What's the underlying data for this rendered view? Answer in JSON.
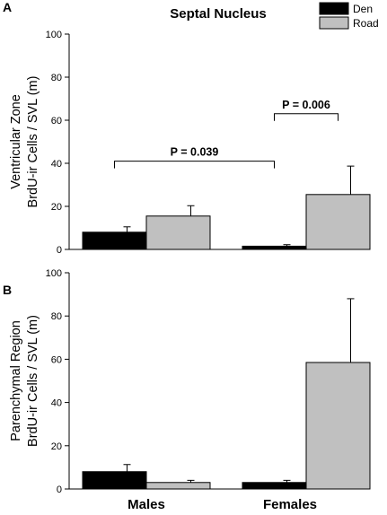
{
  "title": "Septal Nucleus",
  "legend": [
    {
      "label": "Den",
      "color": "#000000"
    },
    {
      "label": "Road",
      "color": "#c0c0c0"
    }
  ],
  "chart_data": [
    {
      "type": "bar",
      "panel": "A",
      "title": "Septal Nucleus",
      "ylabel": [
        "Ventricular Zone",
        "BrdU-ir Cells / SVL (m)"
      ],
      "ylim": [
        0,
        100
      ],
      "yticks": [
        0,
        20,
        40,
        60,
        80,
        100
      ],
      "categories": [
        "Males",
        "Females"
      ],
      "series": [
        {
          "name": "Den",
          "color": "#000000",
          "values": [
            8,
            1.5
          ],
          "errors": [
            2.5,
            0.7
          ]
        },
        {
          "name": "Road",
          "color": "#c0c0c0",
          "values": [
            15.5,
            25.5
          ],
          "errors": [
            4.8,
            13.2
          ]
        }
      ],
      "annotations": [
        {
          "text": "P = 0.039",
          "from": {
            "category": 0,
            "series": 0
          },
          "to": {
            "category": 1,
            "series": 0
          },
          "y": 41
        },
        {
          "text": "P = 0.006",
          "from": {
            "category": 1,
            "series": 0
          },
          "to": {
            "category": 1,
            "series": 1
          },
          "y": 63
        }
      ]
    },
    {
      "type": "bar",
      "panel": "B",
      "ylabel": [
        "Parenchymal Region",
        "BrdU-ir Cells / SVL (m)"
      ],
      "ylim": [
        0,
        100
      ],
      "yticks": [
        0,
        20,
        40,
        60,
        80,
        100
      ],
      "categories": [
        "Males",
        "Females"
      ],
      "series": [
        {
          "name": "Den",
          "color": "#000000",
          "values": [
            8,
            3
          ],
          "errors": [
            3.3,
            1
          ]
        },
        {
          "name": "Road",
          "color": "#c0c0c0",
          "values": [
            3,
            58.5
          ],
          "errors": [
            1,
            29.5
          ]
        }
      ]
    }
  ]
}
